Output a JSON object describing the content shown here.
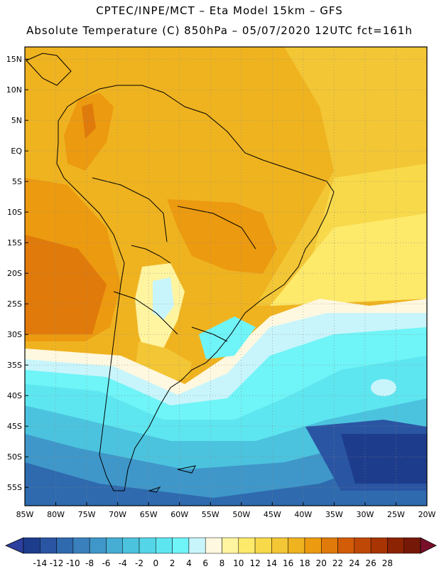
{
  "header": {
    "line1": "CPTEC/INPE/MCT –  Eta Model 15km – GFS",
    "line2": "Absolute Temperature (C) 850hPa – 05/07/2020 12UTC fct=161h"
  },
  "map": {
    "lon_range": [
      -85,
      -20
    ],
    "lat_range": [
      -58,
      17
    ],
    "lat_labels": [
      {
        "lat": 15,
        "label": "15N"
      },
      {
        "lat": 10,
        "label": "10N"
      },
      {
        "lat": 5,
        "label": "5N"
      },
      {
        "lat": 0,
        "label": "EQ"
      },
      {
        "lat": -5,
        "label": "5S"
      },
      {
        "lat": -10,
        "label": "10S"
      },
      {
        "lat": -15,
        "label": "15S"
      },
      {
        "lat": -20,
        "label": "20S"
      },
      {
        "lat": -25,
        "label": "25S"
      },
      {
        "lat": -30,
        "label": "30S"
      },
      {
        "lat": -35,
        "label": "35S"
      },
      {
        "lat": -40,
        "label": "40S"
      },
      {
        "lat": -45,
        "label": "45S"
      },
      {
        "lat": -50,
        "label": "50S"
      },
      {
        "lat": -55,
        "label": "55S"
      }
    ],
    "lon_labels": [
      {
        "lon": -85,
        "label": "85W"
      },
      {
        "lon": -80,
        "label": "80W"
      },
      {
        "lon": -75,
        "label": "75W"
      },
      {
        "lon": -70,
        "label": "70W"
      },
      {
        "lon": -65,
        "label": "65W"
      },
      {
        "lon": -60,
        "label": "60W"
      },
      {
        "lon": -55,
        "label": "55W"
      },
      {
        "lon": -50,
        "label": "50W"
      },
      {
        "lon": -45,
        "label": "45W"
      },
      {
        "lon": -40,
        "label": "40W"
      },
      {
        "lon": -35,
        "label": "35W"
      },
      {
        "lon": -30,
        "label": "30W"
      },
      {
        "lon": -25,
        "label": "25W"
      },
      {
        "lon": -20,
        "label": "20W"
      }
    ]
  },
  "colorbar": {
    "colors": [
      "#1e3c8c",
      "#2a55a3",
      "#2f6aae",
      "#3a80bd",
      "#3f97c9",
      "#46aed3",
      "#4cc3de",
      "#55d6e8",
      "#5ee6f0",
      "#6ff4f7",
      "#c8f5fb",
      "#fff8e0",
      "#fff4a0",
      "#fde96a",
      "#f8d94a",
      "#f3c635",
      "#efb320",
      "#ec9a10",
      "#e07a0a",
      "#d35c08",
      "#c04806",
      "#a83404",
      "#8c2302",
      "#761808"
    ],
    "under_color": "#2c3e9e",
    "over_color": "#7a0f2a",
    "labels": [
      "-14",
      "-12",
      "-10",
      "-8",
      "-6",
      "-4",
      "-2",
      "0",
      "2",
      "4",
      "6",
      "8",
      "10",
      "12",
      "14",
      "16",
      "18",
      "20",
      "22",
      "24",
      "26",
      "28"
    ]
  }
}
